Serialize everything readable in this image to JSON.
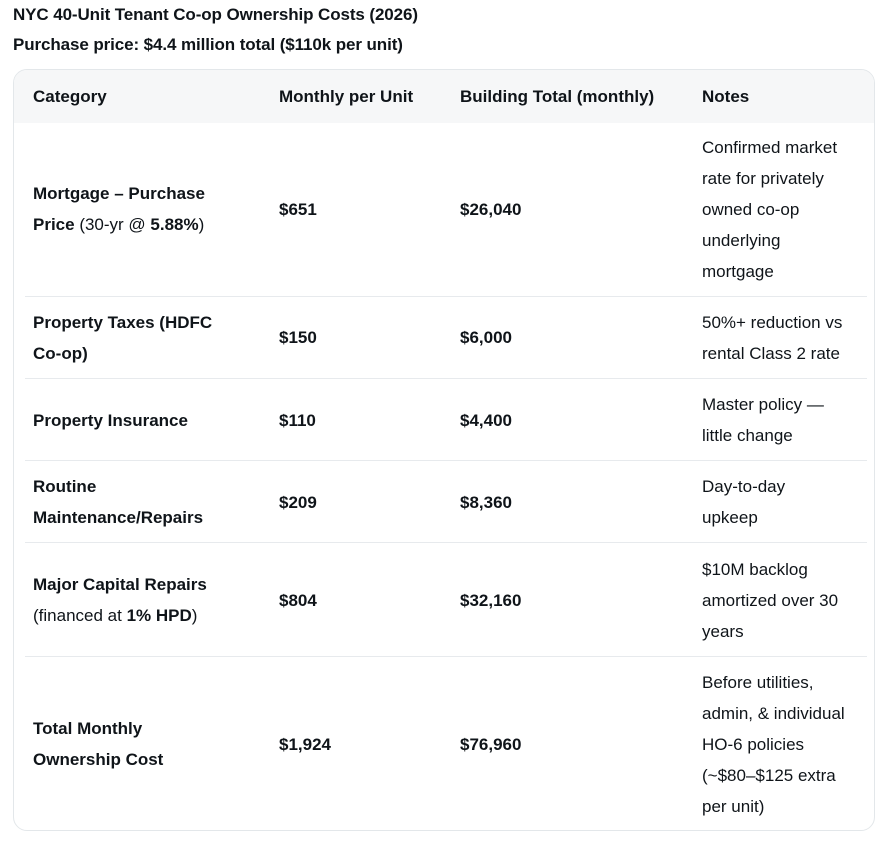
{
  "title": "NYC 40-Unit Tenant Co-op Ownership Costs (2026)",
  "subtitle": "Purchase price: $4.4 million total ($110k per unit)",
  "columns": [
    "Category",
    "Monthly per Unit",
    "Building Total (monthly)",
    "Notes"
  ],
  "rows": [
    {
      "category_line1": "Mortgage – Purchase",
      "category_line2_bold": "Price",
      "category_line2_rest": " (30-yr @ ",
      "category_line2_rate": "5.88%",
      "category_line2_end": ")",
      "per_unit": "$651",
      "building_total": "$26,040",
      "notes": [
        "Confirmed market",
        "rate for privately",
        "owned co-op",
        "underlying",
        "mortgage"
      ]
    },
    {
      "category_lines": [
        "Property Taxes (HDFC",
        "Co-op)"
      ],
      "per_unit": "$150",
      "building_total": "$6,000",
      "notes": [
        "50%+ reduction vs",
        "rental Class 2 rate"
      ]
    },
    {
      "category_lines": [
        "Property Insurance"
      ],
      "per_unit": "$110",
      "building_total": "$4,400",
      "notes": [
        "Master policy —",
        "little change"
      ]
    },
    {
      "category_lines": [
        "Routine",
        "Maintenance/Repairs"
      ],
      "per_unit": "$209",
      "building_total": "$8,360",
      "notes": [
        "Day-to-day",
        "upkeep"
      ]
    },
    {
      "category_line1": "Major Capital Repairs",
      "category_line2_pre": "(financed at ",
      "category_line2_bold": "1% HPD",
      "category_line2_end": ")",
      "per_unit": "$804",
      "building_total": "$32,160",
      "notes": [
        "$10M backlog",
        "amortized over 30",
        "years"
      ]
    },
    {
      "category_lines": [
        "Total Monthly",
        "Ownership Cost"
      ],
      "per_unit": "$1,924",
      "building_total": "$76,960",
      "notes": [
        "Before utilities,",
        "admin, & individual",
        "HO-6 policies",
        "(~$80–$125 extra",
        "per unit)"
      ]
    }
  ]
}
